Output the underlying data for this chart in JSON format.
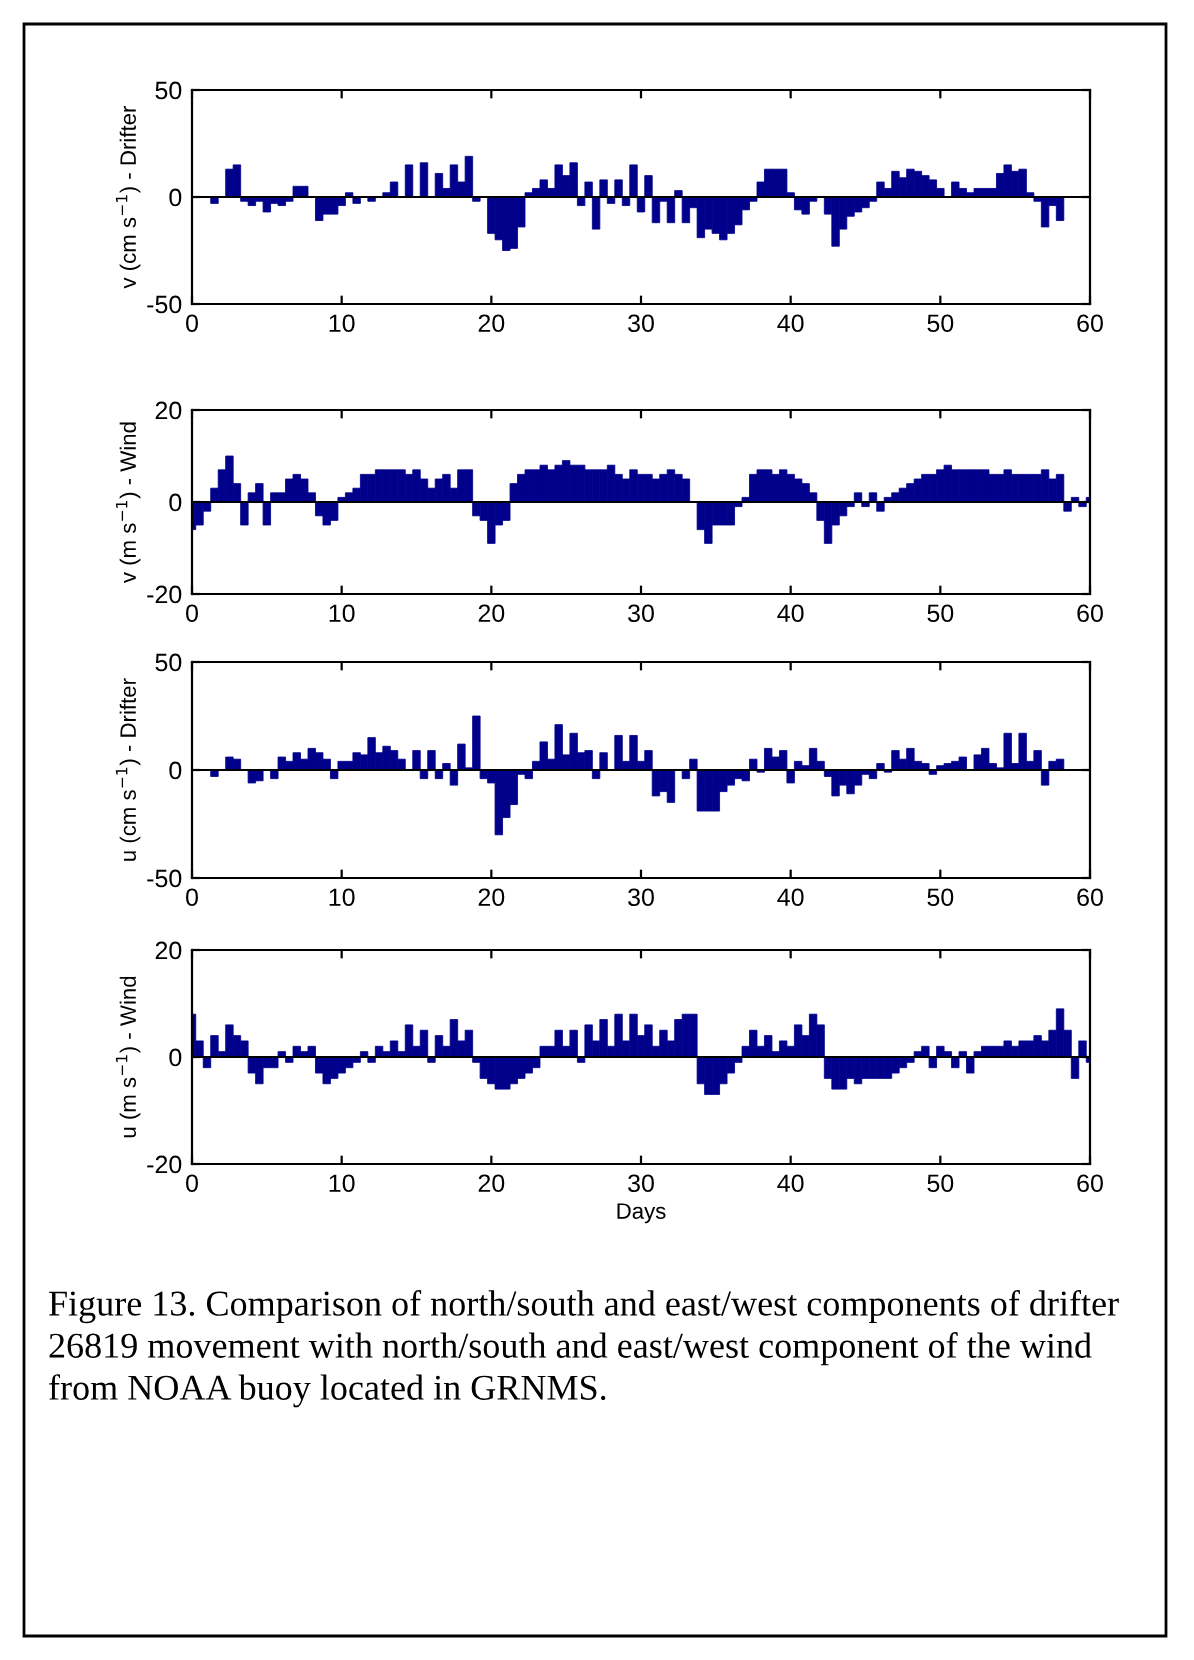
{
  "chart_data": [
    {
      "type": "bar",
      "ylabel": "v (cm s$^{−1}$) - Drifter",
      "color": "#00008b",
      "xlim": [
        0,
        60
      ],
      "xticks": [
        0,
        10,
        20,
        30,
        40,
        50,
        60
      ],
      "ylim": [
        -50,
        50
      ],
      "yticks": [
        -50,
        0,
        50
      ],
      "x": [
        1.5,
        2,
        2.5,
        3,
        3.5,
        4,
        4.5,
        5,
        5.5,
        6,
        6.5,
        7,
        7.5,
        8,
        8.5,
        9,
        9.5,
        10,
        10.5,
        11,
        11.5,
        12,
        12.5,
        13,
        13.5,
        14,
        14.5,
        15,
        15.5,
        16,
        16.5,
        17,
        17.5,
        18,
        18.5,
        19,
        19.5,
        20,
        20.5,
        21,
        21.5,
        22,
        22.5,
        23,
        23.5,
        24,
        24.5,
        25,
        25.5,
        26,
        26.5,
        27,
        27.5,
        28,
        28.5,
        29,
        29.5,
        30,
        30.5,
        31,
        31.5,
        32,
        32.5,
        33,
        33.5,
        34,
        34.5,
        35,
        35.5,
        36,
        36.5,
        37,
        37.5,
        38,
        38.5,
        39,
        39.5,
        40,
        40.5,
        41,
        41.5,
        42,
        42.5,
        43,
        43.5,
        44,
        44.5,
        45,
        45.5,
        46,
        46.5,
        47,
        47.5,
        48,
        48.5,
        49,
        49.5,
        50,
        50.5,
        51,
        51.5,
        52,
        52.5,
        53,
        53.5,
        54,
        54.5,
        55,
        55.5,
        56,
        56.5,
        57,
        57.5,
        58
      ],
      "values": [
        -3,
        0,
        13,
        15,
        -2,
        -4,
        -2,
        -7,
        -3,
        -4,
        -2,
        5,
        5,
        0,
        -11,
        -8,
        -8,
        -4,
        2,
        -3,
        0,
        -2,
        0,
        2,
        7,
        0,
        15,
        0,
        16,
        0,
        11,
        4,
        15,
        7,
        19,
        -2,
        0,
        -17,
        -20,
        -25,
        -24,
        -14,
        2,
        4,
        8,
        4,
        15,
        10,
        16,
        -4,
        7,
        -15,
        8,
        -3,
        8,
        -4,
        15,
        -7,
        10,
        -12,
        -2,
        -12,
        3,
        -12,
        -5,
        -19,
        -15,
        -17,
        -20,
        -17,
        -13,
        -6,
        -2,
        7,
        13,
        13,
        13,
        2,
        -6,
        -8,
        -2,
        0,
        -8,
        -23,
        -15,
        -9,
        -7,
        -5,
        -2,
        7,
        4,
        12,
        9,
        13,
        12,
        10,
        8,
        4,
        0,
        7,
        4,
        2,
        4,
        4,
        4,
        11,
        15,
        12,
        13,
        2,
        -2,
        -14,
        -4,
        -11
      ]
    },
    {
      "type": "bar",
      "ylabel": "v (m s$^{−1}$) - Wind",
      "color": "#00008b",
      "xlim": [
        0,
        60
      ],
      "xticks": [
        0,
        10,
        20,
        30,
        40,
        50,
        60
      ],
      "ylim": [
        -20,
        20
      ],
      "yticks": [
        -20,
        0,
        20
      ],
      "x": [
        0,
        0.5,
        1,
        1.5,
        2,
        2.5,
        3,
        3.5,
        4,
        4.5,
        5,
        5.5,
        6,
        6.5,
        7,
        7.5,
        8,
        8.5,
        9,
        9.5,
        10,
        10.5,
        11,
        11.5,
        12,
        12.5,
        13,
        13.5,
        14,
        14.5,
        15,
        15.5,
        16,
        16.5,
        17,
        17.5,
        18,
        18.5,
        19,
        19.5,
        20,
        20.5,
        21,
        21.5,
        22,
        22.5,
        23,
        23.5,
        24,
        24.5,
        25,
        25.5,
        26,
        26.5,
        27,
        27.5,
        28,
        28.5,
        29,
        29.5,
        30,
        30.5,
        31,
        31.5,
        32,
        32.5,
        33,
        33.5,
        34,
        34.5,
        35,
        35.5,
        36,
        36.5,
        37,
        37.5,
        38,
        38.5,
        39,
        39.5,
        40,
        40.5,
        41,
        41.5,
        42,
        42.5,
        43,
        43.5,
        44,
        44.5,
        45,
        45.5,
        46,
        46.5,
        47,
        47.5,
        48,
        48.5,
        49,
        49.5,
        50,
        50.5,
        51,
        51.5,
        52,
        52.5,
        53,
        53.5,
        54,
        54.5,
        55,
        55.5,
        56,
        56.5,
        57,
        57.5,
        58,
        58.5,
        59,
        59.5,
        60
      ],
      "values": [
        -6,
        -5,
        -2,
        3,
        7,
        10,
        4,
        -5,
        2,
        4,
        -5,
        2,
        2,
        5,
        6,
        5,
        2,
        -3,
        -5,
        -4,
        1,
        2,
        3,
        6,
        6,
        7,
        7,
        7,
        7,
        6,
        7,
        5,
        3,
        5,
        6,
        3,
        7,
        7,
        -3,
        -4,
        -9,
        -5,
        -4,
        4,
        6,
        7,
        7,
        8,
        7,
        8,
        9,
        8,
        8,
        7,
        7,
        7,
        8,
        6,
        5,
        7,
        6,
        6,
        5,
        6,
        7,
        6,
        5,
        0,
        -6,
        -9,
        -5,
        -5,
        -5,
        -1,
        1,
        6,
        7,
        7,
        6,
        7,
        6,
        5,
        4,
        2,
        -4,
        -9,
        -5,
        -3,
        -1,
        2,
        -1,
        2,
        -2,
        1,
        2,
        3,
        4,
        5,
        6,
        6,
        7,
        8,
        7,
        7,
        7,
        7,
        7,
        6,
        6,
        7,
        6,
        6,
        6,
        6,
        7,
        5,
        6,
        -2,
        1,
        -1,
        1
      ]
    },
    {
      "type": "bar",
      "ylabel": "u (cm s$^{−1}$) - Drifter",
      "color": "#00008b",
      "xlim": [
        0,
        60
      ],
      "xticks": [
        0,
        10,
        20,
        30,
        40,
        50,
        60
      ],
      "ylim": [
        -50,
        50
      ],
      "yticks": [
        -50,
        0,
        50
      ],
      "x": [
        1.5,
        2,
        2.5,
        3,
        3.5,
        4,
        4.5,
        5,
        5.5,
        6,
        6.5,
        7,
        7.5,
        8,
        8.5,
        9,
        9.5,
        10,
        10.5,
        11,
        11.5,
        12,
        12.5,
        13,
        13.5,
        14,
        14.5,
        15,
        15.5,
        16,
        16.5,
        17,
        17.5,
        18,
        18.5,
        19,
        19.5,
        20,
        20.5,
        21,
        21.5,
        22,
        22.5,
        23,
        23.5,
        24,
        24.5,
        25,
        25.5,
        26,
        26.5,
        27,
        27.5,
        28,
        28.5,
        29,
        29.5,
        30,
        30.5,
        31,
        31.5,
        32,
        32.5,
        33,
        33.5,
        34,
        34.5,
        35,
        35.5,
        36,
        36.5,
        37,
        37.5,
        38,
        38.5,
        39,
        39.5,
        40,
        40.5,
        41,
        41.5,
        42,
        42.5,
        43,
        43.5,
        44,
        44.5,
        45,
        45.5,
        46,
        46.5,
        47,
        47.5,
        48,
        48.5,
        49,
        49.5,
        50,
        50.5,
        51,
        51.5,
        52,
        52.5,
        53,
        53.5,
        54,
        54.5,
        55,
        55.5,
        56,
        56.5,
        57,
        57.5,
        58
      ],
      "values": [
        -3,
        0,
        6,
        5,
        0,
        -6,
        -5,
        0,
        -4,
        6,
        4,
        8,
        5,
        10,
        8,
        5,
        -4,
        4,
        4,
        8,
        7,
        15,
        8,
        11,
        9,
        5,
        0,
        9,
        -4,
        9,
        -4,
        3,
        -7,
        12,
        1,
        25,
        -4,
        -6,
        -30,
        -22,
        -16,
        -2,
        -4,
        4,
        13,
        5,
        21,
        7,
        17,
        8,
        9,
        -4,
        8,
        0,
        16,
        4,
        16,
        4,
        9,
        -12,
        -10,
        -15,
        0,
        -4,
        5,
        -19,
        -19,
        -19,
        -10,
        -7,
        -4,
        -5,
        5,
        -1,
        10,
        6,
        9,
        -6,
        4,
        2,
        10,
        4,
        -3,
        -12,
        -7,
        -11,
        -7,
        -2,
        -4,
        3,
        -1,
        9,
        5,
        10,
        4,
        3,
        -2,
        2,
        3,
        4,
        6,
        0,
        7,
        10,
        3,
        1,
        17,
        3,
        17,
        4,
        9,
        -7,
        4,
        5
      ]
    },
    {
      "type": "bar",
      "ylabel": "u (m s$^{−1}$) - Wind",
      "xlabel": "Days",
      "color": "#00008b",
      "xlim": [
        0,
        60
      ],
      "xticks": [
        0,
        10,
        20,
        30,
        40,
        50,
        60
      ],
      "ylim": [
        -20,
        20
      ],
      "yticks": [
        -20,
        0,
        20
      ],
      "x": [
        0,
        0.5,
        1,
        1.5,
        2,
        2.5,
        3,
        3.5,
        4,
        4.5,
        5,
        5.5,
        6,
        6.5,
        7,
        7.5,
        8,
        8.5,
        9,
        9.5,
        10,
        10.5,
        11,
        11.5,
        12,
        12.5,
        13,
        13.5,
        14,
        14.5,
        15,
        15.5,
        16,
        16.5,
        17,
        17.5,
        18,
        18.5,
        19,
        19.5,
        20,
        20.5,
        21,
        21.5,
        22,
        22.5,
        23,
        23.5,
        24,
        24.5,
        25,
        25.5,
        26,
        26.5,
        27,
        27.5,
        28,
        28.5,
        29,
        29.5,
        30,
        30.5,
        31,
        31.5,
        32,
        32.5,
        33,
        33.5,
        34,
        34.5,
        35,
        35.5,
        36,
        36.5,
        37,
        37.5,
        38,
        38.5,
        39,
        39.5,
        40,
        40.5,
        41,
        41.5,
        42,
        42.5,
        43,
        43.5,
        44,
        44.5,
        45,
        45.5,
        46,
        46.5,
        47,
        47.5,
        48,
        48.5,
        49,
        49.5,
        50,
        50.5,
        51,
        51.5,
        52,
        52.5,
        53,
        53.5,
        54,
        54.5,
        55,
        55.5,
        56,
        56.5,
        57,
        57.5,
        58,
        58.5,
        59,
        59.5,
        60
      ],
      "values": [
        8,
        3,
        -2,
        4,
        1,
        6,
        4,
        3,
        -3,
        -5,
        -2,
        -2,
        1,
        -1,
        2,
        1,
        2,
        -3,
        -5,
        -4,
        -3,
        -2,
        -1,
        1,
        -1,
        2,
        1,
        3,
        1,
        6,
        2,
        5,
        -1,
        4,
        2,
        7,
        3,
        5,
        -1,
        -4,
        -5,
        -6,
        -6,
        -5,
        -4,
        -3,
        -2,
        2,
        2,
        5,
        2,
        5,
        -1,
        6,
        3,
        7,
        2,
        8,
        3,
        8,
        4,
        6,
        2,
        5,
        3,
        7,
        8,
        8,
        -5,
        -7,
        -7,
        -5,
        -3,
        -1,
        2,
        5,
        2,
        4,
        1,
        3,
        2,
        6,
        4,
        8,
        6,
        -4,
        -6,
        -6,
        -4,
        -5,
        -4,
        -4,
        -4,
        -4,
        -3,
        -2,
        -1,
        1,
        2,
        -2,
        2,
        1,
        -2,
        1,
        -3,
        1,
        2,
        2,
        2,
        3,
        2,
        3,
        3,
        4,
        3,
        5,
        9,
        5,
        -4,
        3,
        -1
      ],
      "annotations": [
        "Figure 13. Comparison of north/south and east/west components of drifter 26819 movement with north/south and east/west component of the wind from NOAA buoy located in GRNMS."
      ]
    }
  ]
}
